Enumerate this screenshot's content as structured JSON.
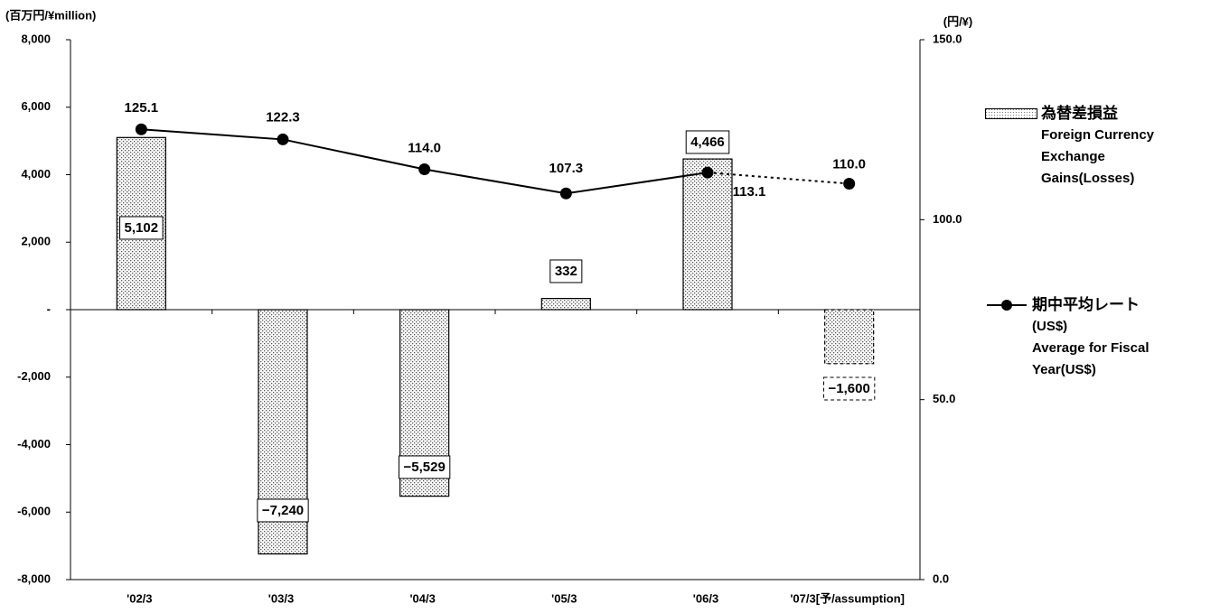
{
  "chart_data": {
    "type": "bar_line",
    "y_label": "(百万円/¥million)",
    "y2_label": "(円/¥)",
    "categories": [
      "'02/3",
      "'03/3",
      "'04/3",
      "'05/3",
      "'06/3",
      "'07/3[予/assumption]"
    ],
    "series": [
      {
        "name": "為替差損益",
        "name_en": "Foreign Currency Exchange Gains(Losses)",
        "type": "bar",
        "color": "#000000",
        "values": [
          5102,
          -7240,
          -5529,
          332,
          4466,
          -1600
        ],
        "value_labels": [
          "5,102",
          "−7,240",
          "−5,529",
          "332",
          "4,466",
          "−1,600"
        ],
        "negative_label_color": "#ff0000"
      },
      {
        "name": "期中平均レート",
        "name_unit": "(US$)",
        "name_en": "Average for Fiscal Year(US$)",
        "type": "line",
        "axis": "y2",
        "color": "#000000",
        "values": [
          125.1,
          122.3,
          114.0,
          107.3,
          113.1,
          110.0
        ],
        "value_labels": [
          "125.1",
          "122.3",
          "114.0",
          "107.3",
          "113.1",
          "110.0"
        ]
      }
    ],
    "ylim": [
      -8000,
      8000
    ],
    "yticks": [
      {
        "value": 8000,
        "label": "8,000"
      },
      {
        "value": 6000,
        "label": "6,000"
      },
      {
        "value": 4000,
        "label": "4,000"
      },
      {
        "value": 2000,
        "label": "2,000"
      },
      {
        "value": 0,
        "label": "-"
      },
      {
        "value": -2000,
        "label": "-2,000"
      },
      {
        "value": -4000,
        "label": "-4,000"
      },
      {
        "value": -6000,
        "label": "-6,000"
      },
      {
        "value": -8000,
        "label": "-8,000"
      }
    ],
    "y2lim": [
      0,
      150
    ],
    "y2ticks": [
      {
        "value": 150,
        "label": "150.0"
      },
      {
        "value": 100,
        "label": "100.0"
      },
      {
        "value": 50,
        "label": "50.0"
      },
      {
        "value": 0,
        "label": "0.0"
      }
    ],
    "grid": false,
    "legend": "right"
  }
}
